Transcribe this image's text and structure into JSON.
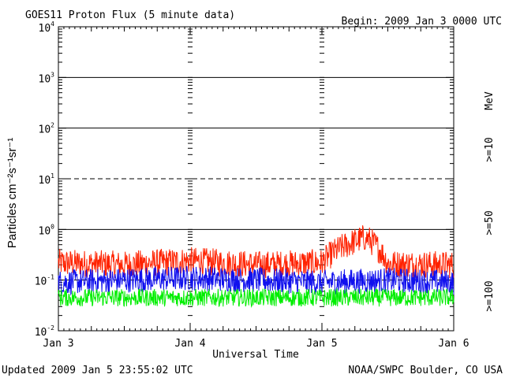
{
  "chart_data": {
    "type": "line",
    "title": "GOES11 Proton Flux (5 minute data)",
    "begin_label": "Begin: 2009 Jan 3 0000 UTC",
    "xlabel": "Universal Time",
    "ylabel": "Particles cm⁻²s⁻¹sr⁻¹",
    "unit_label": "MeV",
    "y_scale": "log",
    "ylim": [
      0.01,
      10000
    ],
    "y_ticks": [
      {
        "base": "10",
        "exp": "4",
        "value": 10000
      },
      {
        "base": "10",
        "exp": "3",
        "value": 1000
      },
      {
        "base": "10",
        "exp": "2",
        "value": 100
      },
      {
        "base": "10",
        "exp": "1",
        "value": 10
      },
      {
        "base": "10",
        "exp": "0",
        "value": 1
      },
      {
        "base": "10",
        "exp": "-1",
        "value": 0.1
      },
      {
        "base": "10",
        "exp": "-2",
        "value": 0.01
      }
    ],
    "x_ticks": [
      "Jan 3",
      "Jan 4",
      "Jan 5",
      "Jan 6"
    ],
    "xlim": [
      "2009-01-03",
      "2009-01-06"
    ],
    "series": [
      {
        "name": ">=10",
        "color": "#ff2200",
        "x": [
          "2009-01-03",
          "2009-01-03T12:00",
          "2009-01-04",
          "2009-01-04T12:00",
          "2009-01-05",
          "2009-01-05T08:00",
          "2009-01-05T12:00",
          "2009-01-06"
        ],
        "values": [
          0.22,
          0.2,
          0.24,
          0.2,
          0.22,
          0.7,
          0.21,
          0.2
        ]
      },
      {
        "name": ">=50",
        "color": "#1010ee",
        "x": [
          "2009-01-03",
          "2009-01-03T12:00",
          "2009-01-04",
          "2009-01-04T12:00",
          "2009-01-05",
          "2009-01-05T12:00",
          "2009-01-06"
        ],
        "values": [
          0.09,
          0.1,
          0.11,
          0.1,
          0.09,
          0.1,
          0.09
        ]
      },
      {
        "name": ">=100",
        "color": "#00ee00",
        "x": [
          "2009-01-03",
          "2009-01-03T12:00",
          "2009-01-04",
          "2009-01-04T12:00",
          "2009-01-05",
          "2009-01-05T12:00",
          "2009-01-06"
        ],
        "values": [
          0.045,
          0.045,
          0.045,
          0.045,
          0.045,
          0.045,
          0.045
        ]
      }
    ],
    "grid": "solid at 10^3, 10^2, 10^0; dashed at 10^1, 10^-1",
    "footer_left": "Updated 2009 Jan  5 23:55:02 UTC",
    "footer_right": "NOAA/SWPC Boulder, CO USA"
  }
}
